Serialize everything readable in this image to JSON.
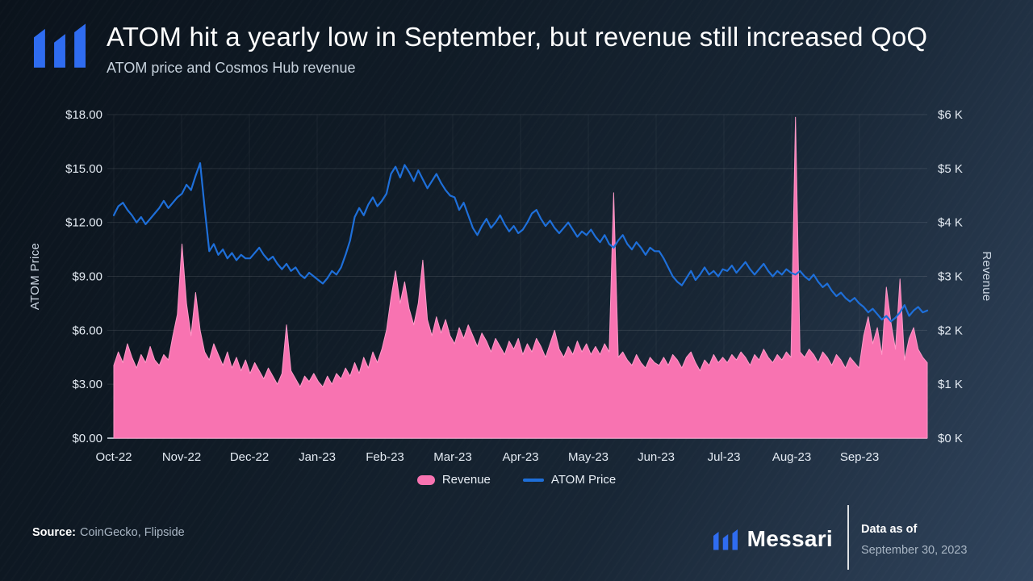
{
  "header": {
    "title": "ATOM hit a yearly low in September, but revenue still increased QoQ",
    "subtitle": "ATOM price and Cosmos Hub revenue"
  },
  "chart_data": {
    "type": "area+line (dual axis)",
    "x_ticks": [
      "Oct-22",
      "Nov-22",
      "Dec-22",
      "Jan-23",
      "Feb-23",
      "Mar-23",
      "Apr-23",
      "May-23",
      "Jun-23",
      "Jul-23",
      "Aug-23",
      "Sep-23"
    ],
    "left_axis": {
      "title": "ATOM Price",
      "min": 0,
      "max": 18,
      "tick_labels": [
        "$0.00",
        "$3.00",
        "$6.00",
        "$9.00",
        "$12.00",
        "$15.00",
        "$18.00"
      ]
    },
    "right_axis": {
      "title": "Revenue",
      "min": 0,
      "max": 6000,
      "tick_labels": [
        "$0 K",
        "$1 K",
        "$2 K",
        "$3 K",
        "$4 K",
        "$5 K",
        "$6 K"
      ]
    },
    "grid": "horizontal-strong-baseline, faint-vertical-at-months",
    "series": [
      {
        "name": "Revenue",
        "type": "area",
        "axis": "right",
        "color": "#f873b1",
        "edge": "#ff9ac8",
        "values": [
          1350,
          1600,
          1400,
          1750,
          1500,
          1300,
          1550,
          1400,
          1700,
          1450,
          1350,
          1550,
          1450,
          1900,
          2300,
          3600,
          2500,
          1900,
          2700,
          2000,
          1600,
          1450,
          1750,
          1550,
          1350,
          1600,
          1300,
          1500,
          1250,
          1450,
          1200,
          1400,
          1250,
          1100,
          1300,
          1150,
          1000,
          1200,
          2100,
          1250,
          1100,
          950,
          1150,
          1050,
          1200,
          1050,
          950,
          1150,
          1000,
          1200,
          1100,
          1300,
          1150,
          1400,
          1200,
          1500,
          1300,
          1600,
          1400,
          1650,
          2000,
          2600,
          3100,
          2500,
          2900,
          2400,
          2100,
          2500,
          3300,
          2200,
          1900,
          2250,
          1950,
          2200,
          1900,
          1750,
          2050,
          1850,
          2100,
          1900,
          1700,
          1950,
          1800,
          1600,
          1850,
          1700,
          1550,
          1800,
          1650,
          1850,
          1550,
          1750,
          1600,
          1850,
          1700,
          1500,
          1750,
          2000,
          1650,
          1500,
          1700,
          1550,
          1800,
          1600,
          1750,
          1550,
          1700,
          1550,
          1750,
          1600,
          4550,
          1500,
          1600,
          1450,
          1350,
          1550,
          1400,
          1300,
          1500,
          1400,
          1350,
          1500,
          1350,
          1550,
          1450,
          1300,
          1500,
          1600,
          1400,
          1250,
          1450,
          1350,
          1550,
          1400,
          1500,
          1400,
          1550,
          1450,
          1600,
          1500,
          1350,
          1550,
          1450,
          1650,
          1500,
          1400,
          1550,
          1450,
          1600,
          1500,
          5950,
          1600,
          1500,
          1650,
          1550,
          1400,
          1600,
          1500,
          1350,
          1550,
          1450,
          1300,
          1500,
          1400,
          1300,
          1900,
          2250,
          1750,
          2050,
          1550,
          2800,
          2150,
          1650,
          2950,
          1450,
          1850,
          2050,
          1650,
          1500,
          1400
        ]
      },
      {
        "name": "ATOM Price",
        "type": "line",
        "axis": "left",
        "color": "#1e6fd9",
        "values": [
          12.4,
          12.9,
          13.1,
          12.7,
          12.4,
          12.0,
          12.3,
          11.9,
          12.2,
          12.5,
          12.8,
          13.2,
          12.8,
          13.1,
          13.4,
          13.6,
          14.1,
          13.8,
          14.6,
          15.3,
          12.8,
          10.4,
          10.8,
          10.2,
          10.5,
          10.0,
          10.3,
          9.9,
          10.2,
          10.0,
          10.0,
          10.3,
          10.6,
          10.2,
          9.9,
          10.1,
          9.7,
          9.4,
          9.7,
          9.3,
          9.5,
          9.1,
          8.9,
          9.2,
          9.0,
          8.8,
          8.6,
          8.9,
          9.3,
          9.1,
          9.5,
          10.2,
          11.0,
          12.3,
          12.8,
          12.4,
          13.0,
          13.4,
          12.9,
          13.2,
          13.6,
          14.7,
          15.1,
          14.5,
          15.2,
          14.8,
          14.3,
          14.9,
          14.4,
          13.9,
          14.3,
          14.7,
          14.2,
          13.8,
          13.5,
          13.4,
          12.7,
          13.1,
          12.4,
          11.7,
          11.3,
          11.8,
          12.2,
          11.7,
          12.0,
          12.4,
          11.9,
          11.5,
          11.8,
          11.4,
          11.6,
          12.0,
          12.5,
          12.7,
          12.2,
          11.8,
          12.1,
          11.7,
          11.4,
          11.7,
          12.0,
          11.6,
          11.2,
          11.5,
          11.3,
          11.6,
          11.2,
          10.9,
          11.3,
          10.8,
          10.6,
          11.0,
          11.3,
          10.8,
          10.5,
          10.9,
          10.6,
          10.2,
          10.6,
          10.4,
          10.4,
          10.0,
          9.5,
          9.0,
          8.7,
          8.5,
          8.9,
          9.3,
          8.8,
          9.1,
          9.5,
          9.1,
          9.3,
          9.0,
          9.4,
          9.3,
          9.6,
          9.2,
          9.5,
          9.8,
          9.4,
          9.1,
          9.4,
          9.7,
          9.3,
          9.0,
          9.3,
          9.1,
          9.4,
          9.2,
          9.1,
          9.3,
          9.0,
          8.8,
          9.1,
          8.7,
          8.4,
          8.6,
          8.2,
          7.9,
          8.1,
          7.8,
          7.6,
          7.8,
          7.5,
          7.3,
          7.0,
          7.2,
          6.9,
          6.6,
          6.8,
          6.5,
          6.7,
          7.0,
          7.4,
          6.8,
          7.1,
          7.3,
          7.0,
          7.1
        ]
      }
    ]
  },
  "legend": {
    "items": [
      {
        "label": "Revenue",
        "color": "#f873b1",
        "shape": "pill"
      },
      {
        "label": "ATOM Price",
        "color": "#1e6fd9",
        "shape": "line"
      }
    ]
  },
  "footer": {
    "source_label": "Source:",
    "source_value": "CoinGecko, Flipside",
    "brand_name": "Messari",
    "data_as_of_label": "Data as of",
    "data_as_of_date": "September 30, 2023"
  },
  "colors": {
    "accent_blue": "#2f6cf0",
    "pink": "#f873b1",
    "line_blue": "#1e6fd9",
    "background_dark": "#0c141d"
  }
}
